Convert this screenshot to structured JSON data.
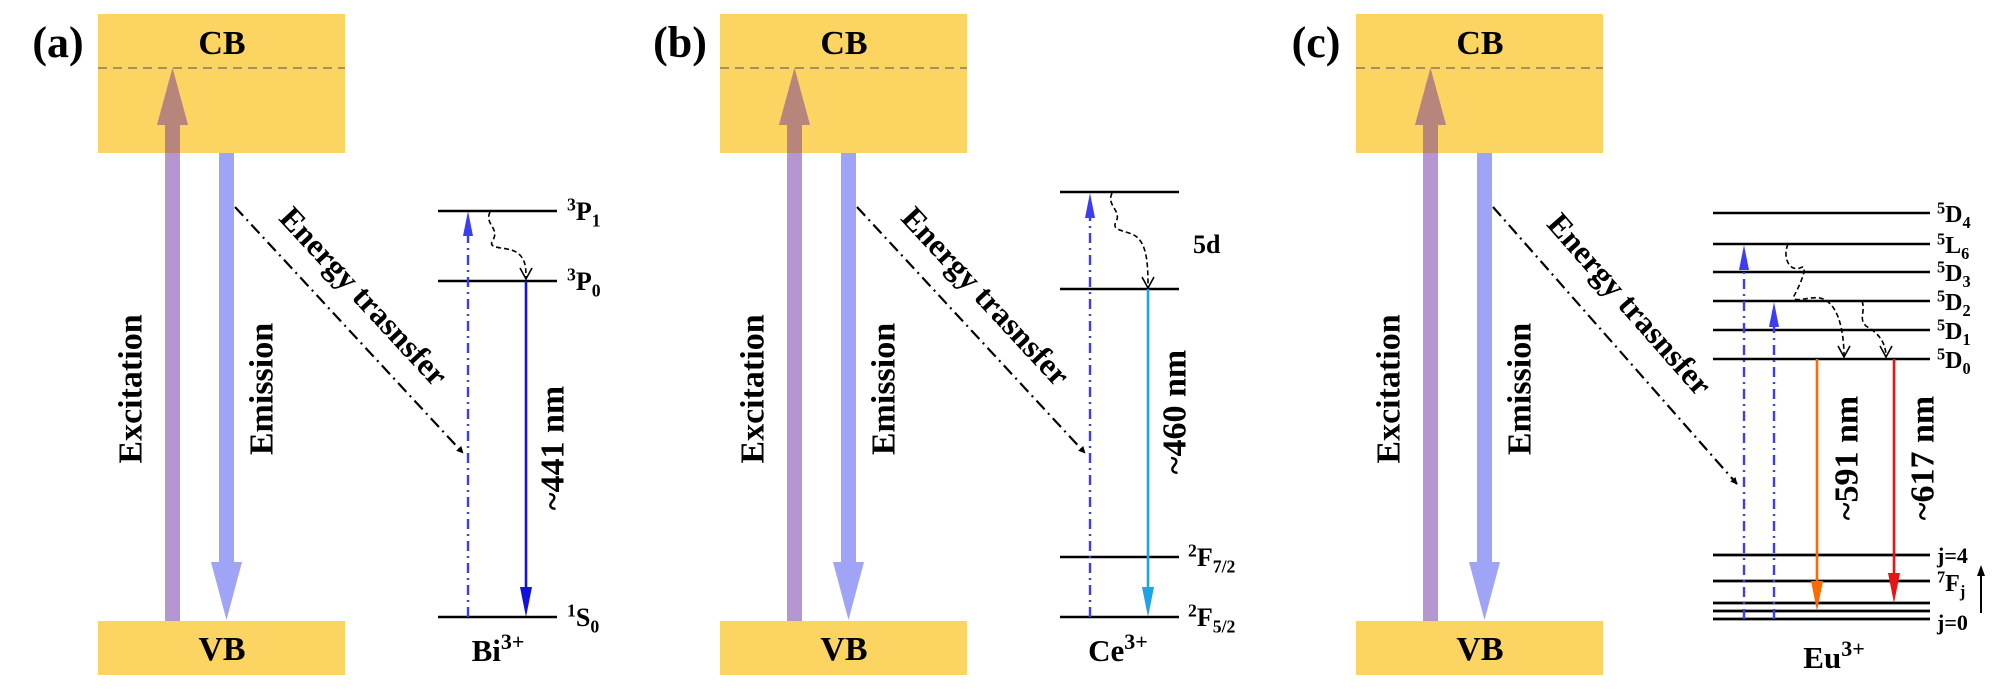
{
  "colors": {
    "band": "#FCD462",
    "band_dashed": "#8A7A5A",
    "excitation_arrow": "#B596D0",
    "excitation_overlap": "#B8857C",
    "emission_arrow": "#A0A4F6",
    "absorption_dashdot": "#3C3CF0",
    "bi_emission": "#1212DC",
    "ce_emission": "#1EA3E6",
    "eu_591_emission": "#FF6A00",
    "eu_617_emission": "#E81414"
  },
  "panels": [
    {
      "label": "(a)",
      "cb": "CB",
      "vb": "VB",
      "excitation": "Excitation",
      "emission": "Emission",
      "energy_transfer": "Energy trasnsfer",
      "ion": {
        "main": "Bi",
        "sup": "3+"
      },
      "emissions": [
        {
          "label": "~441 nm",
          "color_key": "bi_emission"
        }
      ],
      "levels": [
        {
          "sup": "3",
          "main": "P",
          "sub": "1"
        },
        {
          "sup": "3",
          "main": "P",
          "sub": "0"
        },
        {
          "sup": "1",
          "main": "S",
          "sub": "0"
        }
      ]
    },
    {
      "label": "(b)",
      "cb": "CB",
      "vb": "VB",
      "excitation": "Excitation",
      "emission": "Emission",
      "energy_transfer": "Energy trasnsfer",
      "ion": {
        "main": "Ce",
        "sup": "3+"
      },
      "emissions": [
        {
          "label": "~460 nm",
          "color_key": "ce_emission"
        }
      ],
      "band_label": "5d",
      "levels": [
        {
          "sup": "2",
          "main": "F",
          "sub": "7/2"
        },
        {
          "sup": "2",
          "main": "F",
          "sub": "5/2"
        }
      ]
    },
    {
      "label": "(c)",
      "cb": "CB",
      "vb": "VB",
      "excitation": "Excitation",
      "emission": "Emission",
      "energy_transfer": "Energy trasnsfer",
      "ion": {
        "main": "Eu",
        "sup": "3+"
      },
      "emissions": [
        {
          "label": "~591 nm",
          "color_key": "eu_591_emission"
        },
        {
          "label": "~617 nm",
          "color_key": "eu_617_emission"
        }
      ],
      "levels": [
        {
          "sup": "5",
          "main": "D",
          "sub": "4"
        },
        {
          "sup": "5",
          "main": "L",
          "sub": "6"
        },
        {
          "sup": "5",
          "main": "D",
          "sub": "3"
        },
        {
          "sup": "5",
          "main": "D",
          "sub": "2"
        },
        {
          "sup": "5",
          "main": "D",
          "sub": "1"
        },
        {
          "sup": "5",
          "main": "D",
          "sub": "0"
        }
      ],
      "ground_labels": {
        "top": "j=4",
        "term": {
          "sup": "7",
          "main": "F",
          "sub": "j"
        },
        "bottom": "j=0"
      }
    }
  ]
}
